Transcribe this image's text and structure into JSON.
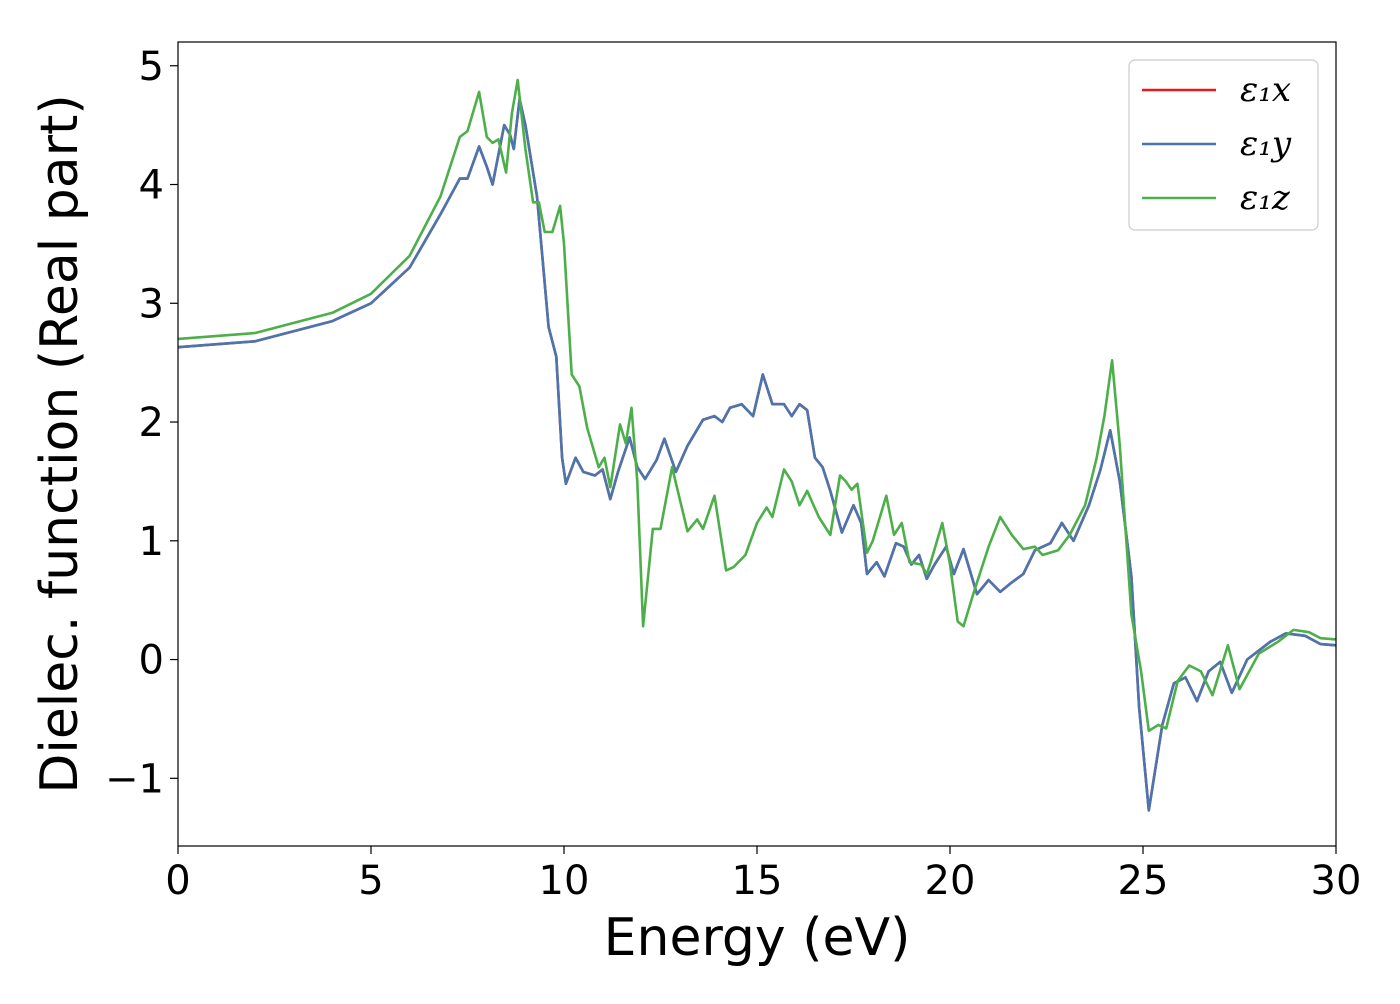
{
  "chart_data": {
    "type": "line",
    "title": "",
    "xlabel": "Energy (eV)",
    "ylabel": "Dielec. function (Real part)",
    "xlim": [
      0,
      30
    ],
    "ylim": [
      -1.57,
      5.2
    ],
    "x_ticks": [
      "0",
      "5",
      "10",
      "15",
      "20",
      "25",
      "30"
    ],
    "y_ticks": [
      "−1",
      "0",
      "1",
      "2",
      "3",
      "4",
      "5"
    ],
    "grid": false,
    "legend_position": "top-right",
    "series": [
      {
        "name": "ε₁x",
        "color": "#e41a1c",
        "points": [
          [
            0,
            2.63
          ],
          [
            2,
            2.68
          ],
          [
            4,
            2.85
          ],
          [
            5,
            3.0
          ],
          [
            6,
            3.3
          ],
          [
            6.8,
            3.75
          ],
          [
            7.3,
            4.05
          ],
          [
            7.5,
            4.05
          ],
          [
            7.8,
            4.32
          ],
          [
            8.0,
            4.15
          ],
          [
            8.15,
            4.0
          ],
          [
            8.45,
            4.5
          ],
          [
            8.6,
            4.42
          ],
          [
            8.7,
            4.3
          ],
          [
            8.85,
            4.72
          ],
          [
            9.0,
            4.5
          ],
          [
            9.3,
            3.9
          ],
          [
            9.6,
            2.8
          ],
          [
            9.8,
            2.55
          ],
          [
            9.95,
            1.7
          ],
          [
            10.05,
            1.48
          ],
          [
            10.3,
            1.7
          ],
          [
            10.5,
            1.58
          ],
          [
            10.8,
            1.55
          ],
          [
            11.0,
            1.6
          ],
          [
            11.2,
            1.35
          ],
          [
            11.4,
            1.58
          ],
          [
            11.7,
            1.87
          ],
          [
            11.9,
            1.62
          ],
          [
            12.1,
            1.52
          ],
          [
            12.4,
            1.68
          ],
          [
            12.6,
            1.86
          ],
          [
            12.9,
            1.58
          ],
          [
            13.2,
            1.8
          ],
          [
            13.6,
            2.02
          ],
          [
            13.9,
            2.05
          ],
          [
            14.1,
            2.0
          ],
          [
            14.3,
            2.12
          ],
          [
            14.6,
            2.15
          ],
          [
            14.9,
            2.05
          ],
          [
            15.15,
            2.4
          ],
          [
            15.4,
            2.15
          ],
          [
            15.7,
            2.15
          ],
          [
            15.9,
            2.05
          ],
          [
            16.1,
            2.15
          ],
          [
            16.3,
            2.1
          ],
          [
            16.5,
            1.7
          ],
          [
            16.7,
            1.62
          ],
          [
            16.9,
            1.42
          ],
          [
            17.2,
            1.07
          ],
          [
            17.5,
            1.3
          ],
          [
            17.7,
            1.15
          ],
          [
            17.85,
            0.72
          ],
          [
            18.1,
            0.82
          ],
          [
            18.3,
            0.7
          ],
          [
            18.6,
            0.98
          ],
          [
            18.8,
            0.95
          ],
          [
            19.0,
            0.8
          ],
          [
            19.2,
            0.88
          ],
          [
            19.4,
            0.68
          ],
          [
            19.6,
            0.8
          ],
          [
            19.9,
            0.95
          ],
          [
            20.1,
            0.72
          ],
          [
            20.35,
            0.93
          ],
          [
            20.7,
            0.55
          ],
          [
            21.0,
            0.67
          ],
          [
            21.3,
            0.57
          ],
          [
            21.6,
            0.65
          ],
          [
            21.9,
            0.72
          ],
          [
            22.2,
            0.92
          ],
          [
            22.6,
            0.98
          ],
          [
            22.9,
            1.15
          ],
          [
            23.2,
            1.0
          ],
          [
            23.6,
            1.3
          ],
          [
            23.9,
            1.6
          ],
          [
            24.15,
            1.93
          ],
          [
            24.4,
            1.5
          ],
          [
            24.7,
            0.7
          ],
          [
            24.9,
            -0.4
          ],
          [
            25.15,
            -1.27
          ],
          [
            25.5,
            -0.55
          ],
          [
            25.8,
            -0.2
          ],
          [
            26.1,
            -0.15
          ],
          [
            26.4,
            -0.35
          ],
          [
            26.7,
            -0.1
          ],
          [
            27.0,
            -0.02
          ],
          [
            27.3,
            -0.28
          ],
          [
            27.7,
            0.0
          ],
          [
            28.3,
            0.15
          ],
          [
            28.7,
            0.22
          ],
          [
            29.2,
            0.2
          ],
          [
            29.6,
            0.13
          ],
          [
            30,
            0.12
          ]
        ]
      },
      {
        "name": "ε₁y",
        "color": "#4a76b0",
        "points": [
          [
            0,
            2.63
          ],
          [
            2,
            2.68
          ],
          [
            4,
            2.85
          ],
          [
            5,
            3.0
          ],
          [
            6,
            3.3
          ],
          [
            6.8,
            3.75
          ],
          [
            7.3,
            4.05
          ],
          [
            7.5,
            4.05
          ],
          [
            7.8,
            4.32
          ],
          [
            8.0,
            4.15
          ],
          [
            8.15,
            4.0
          ],
          [
            8.45,
            4.5
          ],
          [
            8.6,
            4.42
          ],
          [
            8.7,
            4.3
          ],
          [
            8.85,
            4.72
          ],
          [
            9.0,
            4.5
          ],
          [
            9.3,
            3.9
          ],
          [
            9.6,
            2.8
          ],
          [
            9.8,
            2.55
          ],
          [
            9.95,
            1.7
          ],
          [
            10.05,
            1.48
          ],
          [
            10.3,
            1.7
          ],
          [
            10.5,
            1.58
          ],
          [
            10.8,
            1.55
          ],
          [
            11.0,
            1.6
          ],
          [
            11.2,
            1.35
          ],
          [
            11.4,
            1.58
          ],
          [
            11.7,
            1.87
          ],
          [
            11.9,
            1.62
          ],
          [
            12.1,
            1.52
          ],
          [
            12.4,
            1.68
          ],
          [
            12.6,
            1.86
          ],
          [
            12.9,
            1.58
          ],
          [
            13.2,
            1.8
          ],
          [
            13.6,
            2.02
          ],
          [
            13.9,
            2.05
          ],
          [
            14.1,
            2.0
          ],
          [
            14.3,
            2.12
          ],
          [
            14.6,
            2.15
          ],
          [
            14.9,
            2.05
          ],
          [
            15.15,
            2.4
          ],
          [
            15.4,
            2.15
          ],
          [
            15.7,
            2.15
          ],
          [
            15.9,
            2.05
          ],
          [
            16.1,
            2.15
          ],
          [
            16.3,
            2.1
          ],
          [
            16.5,
            1.7
          ],
          [
            16.7,
            1.62
          ],
          [
            16.9,
            1.42
          ],
          [
            17.2,
            1.07
          ],
          [
            17.5,
            1.3
          ],
          [
            17.7,
            1.15
          ],
          [
            17.85,
            0.72
          ],
          [
            18.1,
            0.82
          ],
          [
            18.3,
            0.7
          ],
          [
            18.6,
            0.98
          ],
          [
            18.8,
            0.95
          ],
          [
            19.0,
            0.8
          ],
          [
            19.2,
            0.88
          ],
          [
            19.4,
            0.68
          ],
          [
            19.6,
            0.8
          ],
          [
            19.9,
            0.95
          ],
          [
            20.1,
            0.72
          ],
          [
            20.35,
            0.93
          ],
          [
            20.7,
            0.55
          ],
          [
            21.0,
            0.67
          ],
          [
            21.3,
            0.57
          ],
          [
            21.6,
            0.65
          ],
          [
            21.9,
            0.72
          ],
          [
            22.2,
            0.92
          ],
          [
            22.6,
            0.98
          ],
          [
            22.9,
            1.15
          ],
          [
            23.2,
            1.0
          ],
          [
            23.6,
            1.3
          ],
          [
            23.9,
            1.6
          ],
          [
            24.15,
            1.93
          ],
          [
            24.4,
            1.5
          ],
          [
            24.7,
            0.7
          ],
          [
            24.9,
            -0.4
          ],
          [
            25.15,
            -1.27
          ],
          [
            25.5,
            -0.55
          ],
          [
            25.8,
            -0.2
          ],
          [
            26.1,
            -0.15
          ],
          [
            26.4,
            -0.35
          ],
          [
            26.7,
            -0.1
          ],
          [
            27.0,
            -0.02
          ],
          [
            27.3,
            -0.28
          ],
          [
            27.7,
            0.0
          ],
          [
            28.3,
            0.15
          ],
          [
            28.7,
            0.22
          ],
          [
            29.2,
            0.2
          ],
          [
            29.6,
            0.13
          ],
          [
            30,
            0.12
          ]
        ]
      },
      {
        "name": "ε₁z",
        "color": "#4daf4a",
        "points": [
          [
            0,
            2.7
          ],
          [
            2,
            2.75
          ],
          [
            4,
            2.92
          ],
          [
            5,
            3.08
          ],
          [
            6,
            3.4
          ],
          [
            6.8,
            3.9
          ],
          [
            7.3,
            4.4
          ],
          [
            7.5,
            4.45
          ],
          [
            7.8,
            4.78
          ],
          [
            8.0,
            4.4
          ],
          [
            8.15,
            4.35
          ],
          [
            8.3,
            4.38
          ],
          [
            8.5,
            4.1
          ],
          [
            8.65,
            4.6
          ],
          [
            8.8,
            4.88
          ],
          [
            9.0,
            4.3
          ],
          [
            9.2,
            3.85
          ],
          [
            9.35,
            3.85
          ],
          [
            9.5,
            3.6
          ],
          [
            9.7,
            3.6
          ],
          [
            9.9,
            3.82
          ],
          [
            10.0,
            3.5
          ],
          [
            10.2,
            2.4
          ],
          [
            10.4,
            2.3
          ],
          [
            10.6,
            1.95
          ],
          [
            10.9,
            1.62
          ],
          [
            11.05,
            1.7
          ],
          [
            11.2,
            1.45
          ],
          [
            11.45,
            1.98
          ],
          [
            11.6,
            1.82
          ],
          [
            11.75,
            2.12
          ],
          [
            11.9,
            1.5
          ],
          [
            12.05,
            0.28
          ],
          [
            12.3,
            1.1
          ],
          [
            12.5,
            1.1
          ],
          [
            12.8,
            1.62
          ],
          [
            13.2,
            1.08
          ],
          [
            13.45,
            1.18
          ],
          [
            13.6,
            1.1
          ],
          [
            13.9,
            1.38
          ],
          [
            14.2,
            0.75
          ],
          [
            14.4,
            0.78
          ],
          [
            14.7,
            0.88
          ],
          [
            15.0,
            1.15
          ],
          [
            15.25,
            1.28
          ],
          [
            15.4,
            1.2
          ],
          [
            15.7,
            1.6
          ],
          [
            15.9,
            1.5
          ],
          [
            16.1,
            1.3
          ],
          [
            16.3,
            1.42
          ],
          [
            16.6,
            1.2
          ],
          [
            16.9,
            1.05
          ],
          [
            17.15,
            1.55
          ],
          [
            17.3,
            1.5
          ],
          [
            17.45,
            1.43
          ],
          [
            17.6,
            1.48
          ],
          [
            17.85,
            0.9
          ],
          [
            18.0,
            1.0
          ],
          [
            18.35,
            1.38
          ],
          [
            18.55,
            1.05
          ],
          [
            18.75,
            1.15
          ],
          [
            18.95,
            0.82
          ],
          [
            19.25,
            0.8
          ],
          [
            19.4,
            0.72
          ],
          [
            19.5,
            0.82
          ],
          [
            19.8,
            1.15
          ],
          [
            20.0,
            0.8
          ],
          [
            20.2,
            0.32
          ],
          [
            20.35,
            0.28
          ],
          [
            20.6,
            0.55
          ],
          [
            21.0,
            0.95
          ],
          [
            21.3,
            1.2
          ],
          [
            21.6,
            1.05
          ],
          [
            21.9,
            0.93
          ],
          [
            22.2,
            0.95
          ],
          [
            22.4,
            0.88
          ],
          [
            22.8,
            0.92
          ],
          [
            23.1,
            1.05
          ],
          [
            23.5,
            1.3
          ],
          [
            23.8,
            1.7
          ],
          [
            24.0,
            2.05
          ],
          [
            24.2,
            2.52
          ],
          [
            24.4,
            1.8
          ],
          [
            24.7,
            0.38
          ],
          [
            24.95,
            -0.1
          ],
          [
            25.15,
            -0.6
          ],
          [
            25.4,
            -0.55
          ],
          [
            25.6,
            -0.58
          ],
          [
            25.9,
            -0.18
          ],
          [
            26.2,
            -0.05
          ],
          [
            26.5,
            -0.1
          ],
          [
            26.8,
            -0.3
          ],
          [
            27.2,
            0.12
          ],
          [
            27.5,
            -0.25
          ],
          [
            28.0,
            0.05
          ],
          [
            28.5,
            0.15
          ],
          [
            28.9,
            0.25
          ],
          [
            29.3,
            0.23
          ],
          [
            29.6,
            0.18
          ],
          [
            30,
            0.17
          ]
        ]
      }
    ]
  }
}
